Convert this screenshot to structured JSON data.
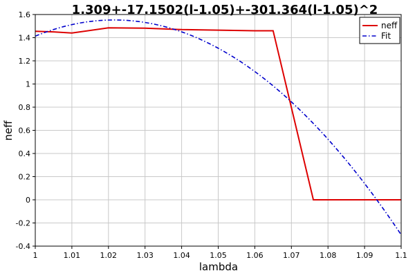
{
  "chart_data": {
    "type": "line",
    "title": "1.309+-17.1502(l-1.05)+-301.364(l-1.05)^2",
    "xlabel": "lambda",
    "ylabel": "neff",
    "xlim": [
      1,
      1.1
    ],
    "ylim": [
      -0.4,
      1.6
    ],
    "x_ticks": [
      "1",
      "1.01",
      "1.02",
      "1.03",
      "1.04",
      "1.05",
      "1.06",
      "1.07",
      "1.08",
      "1.09",
      "1.1"
    ],
    "y_ticks": [
      "-0.4",
      "-0.2",
      "0",
      "0.2",
      "0.4",
      "0.6",
      "0.8",
      "1",
      "1.2",
      "1.4",
      "1.6"
    ],
    "grid": true,
    "legend_position": "top-right",
    "series": [
      {
        "name": "neff",
        "color": "#dd0000",
        "style": "solid",
        "x": [
          1.0,
          1.005,
          1.01,
          1.02,
          1.03,
          1.04,
          1.05,
          1.06,
          1.065,
          1.076,
          1.085,
          1.1
        ],
        "y": [
          1.455,
          1.45,
          1.44,
          1.485,
          1.482,
          1.47,
          1.465,
          1.46,
          1.46,
          0.0,
          0.0,
          0.0
        ]
      },
      {
        "name": "Fit",
        "color": "#0000cc",
        "style": "dashdot",
        "formula": "1.309+-17.1502(l-1.05)+-301.364(l-1.05)^2",
        "x": [
          1.0,
          1.01,
          1.02,
          1.03,
          1.04,
          1.05,
          1.06,
          1.07,
          1.08,
          1.09,
          1.1
        ],
        "y": [
          1.4,
          1.5,
          1.55,
          1.54,
          1.45,
          1.3,
          1.15,
          0.9,
          0.55,
          0.15,
          -0.3
        ]
      }
    ]
  },
  "colors": {
    "grid": "#c8c8c8",
    "axis": "#000000"
  }
}
